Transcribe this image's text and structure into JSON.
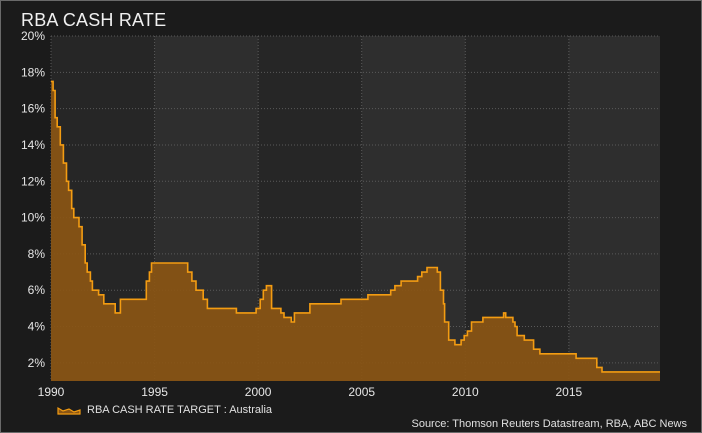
{
  "title": "RBA CASH RATE",
  "legend_label": "RBA CASH RATE TARGET : Australia",
  "source": "Source: Thomson Reuters Datastream, RBA, ABC News",
  "colors": {
    "line": "#f39c12",
    "fill": "#8a5514",
    "plot_bg": "#262626",
    "grid": "#5a5a5a"
  },
  "chart_data": {
    "type": "area",
    "title": "RBA CASH RATE",
    "xlabel": "",
    "ylabel": "",
    "xlim": [
      1990,
      2019.4
    ],
    "ylim": [
      1,
      20
    ],
    "x_ticks": [
      1990,
      1995,
      2000,
      2005,
      2010,
      2015
    ],
    "x_tick_labels": [
      "1990",
      "1995",
      "2000",
      "2005",
      "2010",
      "2015"
    ],
    "y_ticks": [
      2,
      4,
      6,
      8,
      10,
      12,
      14,
      16,
      18,
      20
    ],
    "y_tick_labels": [
      "2%",
      "4%",
      "6%",
      "8%",
      "10%",
      "12%",
      "14%",
      "16%",
      "18%",
      "20%"
    ],
    "grid": true,
    "legend": "bottom-left",
    "series": [
      {
        "name": "RBA CASH RATE TARGET : Australia",
        "step": true,
        "x": [
          1990.0,
          1990.1,
          1990.2,
          1990.3,
          1990.45,
          1990.6,
          1990.75,
          1990.85,
          1991.0,
          1991.1,
          1991.35,
          1991.5,
          1991.65,
          1991.75,
          1991.9,
          1992.0,
          1992.3,
          1992.55,
          1993.1,
          1993.35,
          1994.6,
          1994.75,
          1994.85,
          1995.0,
          1996.6,
          1996.8,
          1997.0,
          1997.35,
          1997.55,
          1998.95,
          1999.9,
          2000.1,
          2000.25,
          2000.4,
          2000.65,
          2001.1,
          2001.25,
          2001.6,
          2001.75,
          2002.35,
          2002.5,
          2003.9,
          2004.0,
          2005.2,
          2005.3,
          2006.4,
          2006.6,
          2006.9,
          2007.7,
          2007.9,
          2008.15,
          2008.65,
          2008.8,
          2008.95,
          2009.0,
          2009.2,
          2009.5,
          2009.8,
          2009.95,
          2010.1,
          2010.3,
          2010.85,
          2011.85,
          2011.95,
          2012.3,
          2012.4,
          2012.5,
          2012.85,
          2013.3,
          2013.6,
          2015.1,
          2015.35,
          2016.35,
          2016.6,
          2019.4
        ],
        "y": [
          17.5,
          17.0,
          15.5,
          15.0,
          14.0,
          13.0,
          12.0,
          11.5,
          10.5,
          10.0,
          9.5,
          8.5,
          7.5,
          7.0,
          6.5,
          6.0,
          5.75,
          5.25,
          4.75,
          5.5,
          6.5,
          7.0,
          7.5,
          7.5,
          7.0,
          6.5,
          6.0,
          5.5,
          5.0,
          4.75,
          5.0,
          5.5,
          6.0,
          6.25,
          5.0,
          4.75,
          4.5,
          4.25,
          4.75,
          4.75,
          5.25,
          5.25,
          5.5,
          5.5,
          5.75,
          6.0,
          6.25,
          6.5,
          6.75,
          7.0,
          7.25,
          7.0,
          6.0,
          5.25,
          4.25,
          3.25,
          3.0,
          3.25,
          3.5,
          3.75,
          4.25,
          4.5,
          4.75,
          4.5,
          4.25,
          4.0,
          3.5,
          3.25,
          2.75,
          2.5,
          2.5,
          2.25,
          1.75,
          1.5,
          1.5
        ]
      }
    ]
  }
}
